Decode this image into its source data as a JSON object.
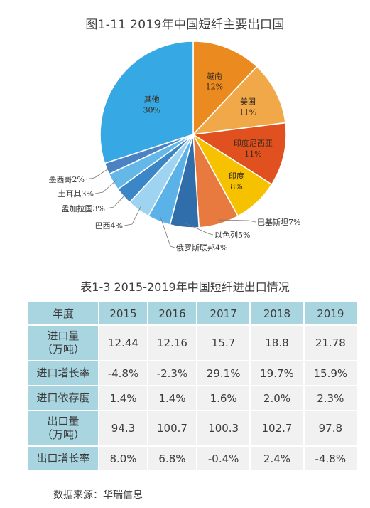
{
  "figure": {
    "title": "图1-11  2019年中国短纤主要出口国"
  },
  "chart_data": {
    "type": "pie",
    "title": "图1-11  2019年中国短纤主要出口国",
    "slices": [
      {
        "label": "越南",
        "pct": "12%",
        "value": 12,
        "color": "#ea8a1f",
        "label_pos": "inside"
      },
      {
        "label": "美国",
        "pct": "11%",
        "value": 11,
        "color": "#f0a848",
        "label_pos": "inside"
      },
      {
        "label": "印度尼西亚",
        "pct": "11%",
        "value": 11,
        "color": "#e0511f",
        "label_pos": "inside"
      },
      {
        "label": "印度",
        "pct": "8%",
        "value": 8,
        "color": "#f6c200",
        "label_pos": "inside"
      },
      {
        "label": "巴基斯坦",
        "pct": "7%",
        "value": 7,
        "color": "#e87a3f",
        "label_pos": "outside"
      },
      {
        "label": "以色列",
        "pct": "5%",
        "value": 5,
        "color": "#2f6eaa",
        "label_pos": "outside"
      },
      {
        "label": "俄罗斯联邦",
        "pct": "4%",
        "value": 4,
        "color": "#5bb2e8",
        "label_pos": "outside"
      },
      {
        "label": "巴西",
        "pct": "4%",
        "value": 4,
        "color": "#9ed3f2",
        "label_pos": "outside"
      },
      {
        "label": "孟加拉国",
        "pct": "3%",
        "value": 3,
        "color": "#3b86c6",
        "label_pos": "outside"
      },
      {
        "label": "土耳其",
        "pct": "3%",
        "value": 3,
        "color": "#63b8e8",
        "label_pos": "outside"
      },
      {
        "label": "墨西哥",
        "pct": "2%",
        "value": 2,
        "color": "#4a82c4",
        "label_pos": "outside"
      },
      {
        "label": "其他",
        "pct": "30%",
        "value": 30,
        "color": "#36a8e3",
        "label_pos": "inside"
      }
    ]
  },
  "table": {
    "title": "表1-3  2015-2019年中国短纤进出口情况",
    "header": [
      "年度",
      "2015",
      "2016",
      "2017",
      "2018",
      "2019"
    ],
    "rows": [
      {
        "label": [
          "进口量",
          "（万吨）"
        ],
        "values": [
          "12.44",
          "12.16",
          "15.7",
          "18.8",
          "21.78"
        ],
        "tall": true
      },
      {
        "label": [
          "进口增长率"
        ],
        "values": [
          "-4.8%",
          "-2.3%",
          "29.1%",
          "19.7%",
          "15.9%"
        ],
        "tall": false
      },
      {
        "label": [
          "进口依存度"
        ],
        "values": [
          "1.4%",
          "1.4%",
          "1.6%",
          "2.0%",
          "2.3%"
        ],
        "tall": false
      },
      {
        "label": [
          "出口量",
          "（万吨）"
        ],
        "values": [
          "94.3",
          "100.7",
          "100.3",
          "102.7",
          "97.8"
        ],
        "tall": true
      },
      {
        "label": [
          "出口增长率"
        ],
        "values": [
          "8.0%",
          "6.8%",
          "-0.4%",
          "2.4%",
          "-4.8%"
        ],
        "tall": false
      }
    ]
  },
  "source": "数据来源：华瑞信息"
}
